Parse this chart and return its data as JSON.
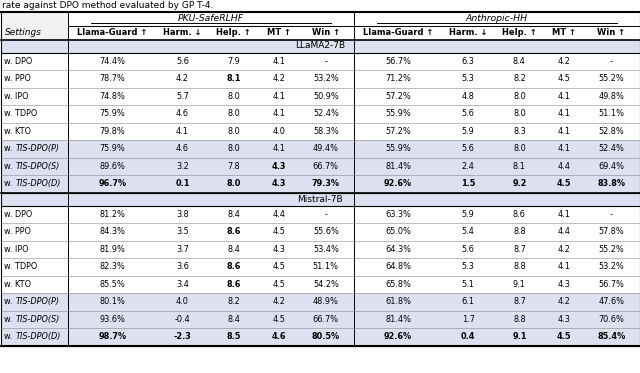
{
  "title": "rate against DPO method evaluated by GP T-4.",
  "subheaders": [
    "Llama-Guard ↑",
    "Harm. ↓",
    "Help. ↑",
    "MT ↑",
    "Win ↑",
    "Llama-Guard ↑",
    "Harm. ↓",
    "Help. ↑",
    "MT ↑",
    "Win ↑"
  ],
  "sections": [
    {
      "name": "LLaMA2-7B",
      "rows": [
        {
          "setting": "w. DPO",
          "pku": [
            "74.4%",
            "5.6",
            "7.9",
            "4.1",
            "-"
          ],
          "hh": [
            "56.7%",
            "6.3",
            "8.4",
            "4.2",
            "-"
          ]
        },
        {
          "setting": "w. PPO",
          "pku": [
            "78.7%",
            "4.2",
            "8.1",
            "4.2",
            "53.2%"
          ],
          "hh": [
            "71.2%",
            "5.3",
            "8.2",
            "4.5",
            "55.2%"
          ]
        },
        {
          "setting": "w. IPO",
          "pku": [
            "74.8%",
            "5.7",
            "8.0",
            "4.1",
            "50.9%"
          ],
          "hh": [
            "57.2%",
            "4.8",
            "8.0",
            "4.1",
            "49.8%"
          ]
        },
        {
          "setting": "w. TDPO",
          "pku": [
            "75.9%",
            "4.6",
            "8.0",
            "4.1",
            "52.4%"
          ],
          "hh": [
            "55.9%",
            "5.6",
            "8.0",
            "4.1",
            "51.1%"
          ]
        },
        {
          "setting": "w. KTO",
          "pku": [
            "79.8%",
            "4.1",
            "8.0",
            "4.0",
            "58.3%"
          ],
          "hh": [
            "57.2%",
            "5.9",
            "8.3",
            "4.1",
            "52.8%"
          ]
        },
        {
          "setting": "w. TIS-DPO(P)",
          "pku": [
            "75.9%",
            "4.6",
            "8.0",
            "4.1",
            "49.4%"
          ],
          "hh": [
            "55.9%",
            "5.6",
            "8.0",
            "4.1",
            "52.4%"
          ],
          "tis": true
        },
        {
          "setting": "w. TIS-DPO(S)",
          "pku": [
            "89.6%",
            "3.2",
            "7.8",
            "4.3",
            "66.7%"
          ],
          "hh": [
            "81.4%",
            "2.4",
            "8.1",
            "4.4",
            "69.4%"
          ],
          "tis": true
        },
        {
          "setting": "w. TIS-DPO(D)",
          "pku": [
            "96.7%",
            "0.1",
            "8.0",
            "4.3",
            "79.3%"
          ],
          "hh": [
            "92.6%",
            "1.5",
            "9.2",
            "4.5",
            "83.8%"
          ],
          "tis": true,
          "bold_all": true
        }
      ]
    },
    {
      "name": "Mistral-7B",
      "rows": [
        {
          "setting": "w. DPO",
          "pku": [
            "81.2%",
            "3.8",
            "8.4",
            "4.4",
            "-"
          ],
          "hh": [
            "63.3%",
            "5.9",
            "8.6",
            "4.1",
            "-"
          ]
        },
        {
          "setting": "w. PPO",
          "pku": [
            "84.3%",
            "3.5",
            "8.6",
            "4.5",
            "55.6%"
          ],
          "hh": [
            "65.0%",
            "5.4",
            "8.8",
            "4.4",
            "57.8%"
          ]
        },
        {
          "setting": "w. IPO",
          "pku": [
            "81.9%",
            "3.7",
            "8.4",
            "4.3",
            "53.4%"
          ],
          "hh": [
            "64.3%",
            "5.6",
            "8.7",
            "4.2",
            "55.2%"
          ]
        },
        {
          "setting": "w. TDPO",
          "pku": [
            "82.3%",
            "3.6",
            "8.6",
            "4.5",
            "51.1%"
          ],
          "hh": [
            "64.8%",
            "5.3",
            "8.8",
            "4.1",
            "53.2%"
          ]
        },
        {
          "setting": "w. KTO",
          "pku": [
            "85.5%",
            "3.4",
            "8.6",
            "4.5",
            "54.2%"
          ],
          "hh": [
            "65.8%",
            "5.1",
            "9.1",
            "4.3",
            "56.7%"
          ]
        },
        {
          "setting": "w. TIS-DPO(P)",
          "pku": [
            "80.1%",
            "4.0",
            "8.2",
            "4.2",
            "48.9%"
          ],
          "hh": [
            "61.8%",
            "6.1",
            "8.7",
            "4.2",
            "47.6%"
          ],
          "tis": true
        },
        {
          "setting": "w. TIS-DPO(S)",
          "pku": [
            "93.6%",
            "-0.4",
            "8.4",
            "4.5",
            "66.7%"
          ],
          "hh": [
            "81.4%",
            "1.7",
            "8.8",
            "4.3",
            "70.6%"
          ],
          "tis": true
        },
        {
          "setting": "w. TIS-DPO(D)",
          "pku": [
            "98.7%",
            "-2.3",
            "8.5",
            "4.6",
            "80.5%"
          ],
          "hh": [
            "92.6%",
            "0.4",
            "9.1",
            "4.5",
            "85.4%"
          ],
          "tis": true,
          "bold_all": true
        }
      ]
    }
  ],
  "bold_pku": {
    "LLaMA2-7B": {
      "w. PPO": [
        2
      ],
      "w. TIS-DPO(S)": [
        3
      ],
      "w. TIS-DPO(D)": [
        0,
        1,
        3,
        4
      ]
    },
    "Mistral-7B": {
      "w. PPO": [
        2
      ],
      "w. TDPO": [
        2
      ],
      "w. KTO": [
        2
      ],
      "w. TIS-DPO(D)": [
        0,
        1,
        3,
        4
      ]
    }
  },
  "bold_hh": {
    "LLaMA2-7B": {
      "w. TIS-DPO(D)": [
        0,
        1,
        2,
        3,
        4
      ]
    },
    "Mistral-7B": {
      "w. TIS-DPO(D)": [
        0,
        1,
        2,
        3,
        4
      ]
    }
  },
  "section_bg": "#dde0f0",
  "white": "#ffffff",
  "gray_header": "#f2f2f2",
  "font_size": 6.2
}
